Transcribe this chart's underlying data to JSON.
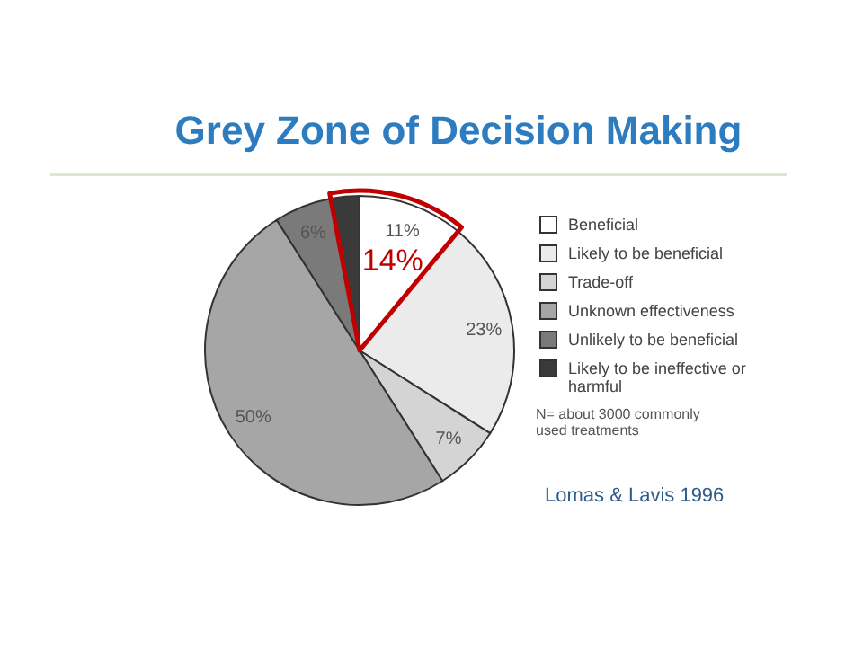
{
  "chart_data": {
    "type": "pie",
    "title": "Grey Zone of Decision Making",
    "categories": [
      "Beneficial",
      "Likely to be beneficial",
      "Trade-off",
      "Unknown effectiveness",
      "Unlikely to be beneficial",
      "Likely to be ineffective or harmful"
    ],
    "values": [
      11,
      23,
      7,
      50,
      6,
      3
    ],
    "colors": [
      "#ffffff",
      "#ebebeb",
      "#d4d4d4",
      "#a6a6a6",
      "#7a7a7a",
      "#3a3a3a"
    ],
    "value_labels": [
      "11%",
      "23%",
      "7%",
      "50%",
      "6%",
      null
    ],
    "legend": "right",
    "annotations": [
      "14%",
      "N= about 3000 commonly used treatments",
      "Lomas & Lavis 1996"
    ]
  }
}
